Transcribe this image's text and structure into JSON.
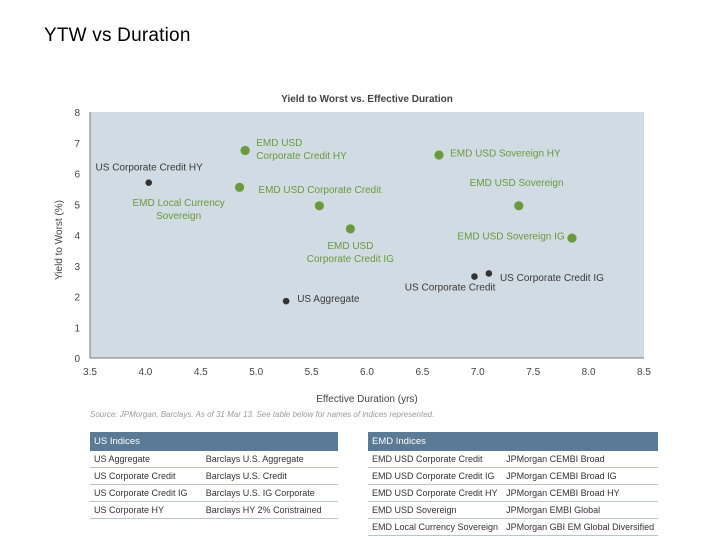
{
  "page": {
    "title": "YTW vs Duration"
  },
  "chart_data": {
    "type": "scatter",
    "title": "Yield to Worst vs. Effective Duration",
    "xlabel": "Effective Duration (yrs)",
    "ylabel": "Yield to Worst (%)",
    "xlim": [
      3.5,
      8.5
    ],
    "ylim": [
      0,
      8
    ],
    "xticks": [
      "3.5",
      "4.0",
      "4.5",
      "5.0",
      "5.5",
      "6.0",
      "6.5",
      "7.0",
      "7.5",
      "8.0",
      "8.5"
    ],
    "yticks": [
      "0",
      "1",
      "2",
      "3",
      "4",
      "5",
      "6",
      "7",
      "8"
    ],
    "grid": false,
    "background": "#d1dbe3",
    "colors": {
      "us": "#333333",
      "emd": "#6a9a3c",
      "us_label": "#3a3a3a",
      "emd_label": "#6a9a3c"
    },
    "series": [
      {
        "group": "us",
        "points": [
          {
            "label": "US Corporate Credit HY",
            "x": 4.03,
            "y": 5.7
          },
          {
            "label": "US Aggregate",
            "x": 5.27,
            "y": 1.85
          },
          {
            "label": "US Corporate Credit",
            "x": 6.97,
            "y": 2.65
          },
          {
            "label": "US Corporate Credit IG",
            "x": 7.1,
            "y": 2.75
          }
        ]
      },
      {
        "group": "emd",
        "points": [
          {
            "label": "EMD USD Corporate Credit HY",
            "x": 4.9,
            "y": 6.75
          },
          {
            "label": "EMD Local Currency Sovereign",
            "x": 4.85,
            "y": 5.55
          },
          {
            "label": "EMD USD Corporate Credit",
            "x": 5.57,
            "y": 4.95
          },
          {
            "label": "EMD USD Corporate Credit IG",
            "x": 5.85,
            "y": 4.2
          },
          {
            "label": "EMD USD Sovereign HY",
            "x": 6.65,
            "y": 6.6
          },
          {
            "label": "EMD USD Sovereign",
            "x": 7.37,
            "y": 4.95
          },
          {
            "label": "EMD USD Sovereign IG",
            "x": 7.85,
            "y": 3.9
          }
        ]
      }
    ],
    "point_labels": [
      {
        "lines": [
          "US Corporate Credit HY"
        ],
        "group": "us",
        "x": 3.55,
        "y": 6.1,
        "anchor": "start"
      },
      {
        "lines": [
          "US Aggregate"
        ],
        "group": "us",
        "x": 5.37,
        "y": 1.82,
        "anchor": "start"
      },
      {
        "lines": [
          "US Corporate Credit"
        ],
        "group": "us",
        "x": 6.75,
        "y": 2.2,
        "anchor": "middle"
      },
      {
        "lines": [
          "US Corporate Credit IG"
        ],
        "group": "us",
        "x": 7.2,
        "y": 2.5,
        "anchor": "start"
      },
      {
        "lines": [
          "EMD USD",
          "Corporate Credit HY"
        ],
        "group": "emd",
        "x": 5.0,
        "y": 6.9,
        "anchor": "start"
      },
      {
        "lines": [
          "EMD Local Currency",
          "Sovereign"
        ],
        "group": "emd",
        "x": 4.3,
        "y": 4.95,
        "anchor": "middle"
      },
      {
        "lines": [
          "EMD USD Corporate Credit"
        ],
        "group": "emd",
        "x": 5.02,
        "y": 5.37,
        "anchor": "start"
      },
      {
        "lines": [
          "EMD USD",
          "Corporate Credit IG"
        ],
        "group": "emd",
        "x": 5.85,
        "y": 3.55,
        "anchor": "middle"
      },
      {
        "lines": [
          "EMD USD Sovereign HY"
        ],
        "group": "emd",
        "x": 6.75,
        "y": 6.55,
        "anchor": "start"
      },
      {
        "lines": [
          "EMD USD Sovereign"
        ],
        "group": "emd",
        "x": 7.35,
        "y": 5.6,
        "anchor": "middle"
      },
      {
        "lines": [
          "EMD USD Sovereign IG"
        ],
        "group": "emd",
        "x": 7.3,
        "y": 3.85,
        "anchor": "middle"
      }
    ]
  },
  "source": "Source: JPMorgan, Barclays. As of 31 Mar 13. See table below for names of indices represented.",
  "us_table": {
    "headers": [
      "US Indices",
      ""
    ],
    "rows": [
      [
        "US Aggregate",
        "Barclays U.S. Aggregate"
      ],
      [
        "US Corporate Credit",
        "Barclays U.S. Credit"
      ],
      [
        "US Corporate Credit IG",
        "Barclays U.S. IG Corporate"
      ],
      [
        "US Corporate HY",
        "Barclays HY 2% Constrained"
      ]
    ]
  },
  "emd_table": {
    "headers": [
      "EMD Indices",
      ""
    ],
    "rows": [
      [
        "EMD USD Corporate Credit",
        "JPMorgan CEMBI Broad"
      ],
      [
        "EMD USD Corporate Credit IG",
        "JPMorgan CEMBI Broad IG"
      ],
      [
        "EMD USD Corporate Credit HY",
        "JPMorgan CEMBI Broad HY"
      ],
      [
        "EMD USD Sovereign",
        "JPMorgan EMBI Global"
      ],
      [
        "EMD Local Currency Sovereign",
        "JPMorgan GBI EM Global Diversified"
      ]
    ]
  }
}
